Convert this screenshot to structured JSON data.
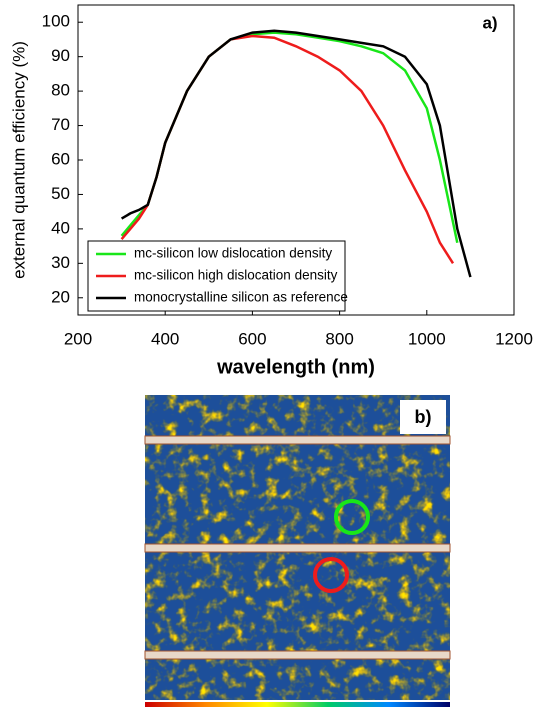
{
  "chart_data": {
    "type": "line",
    "annotation": "a)",
    "x_label": "wavelength  (nm)",
    "y_label": "external quantum efficiency (%)",
    "xlim": [
      200,
      1200
    ],
    "xticks": [
      200,
      400,
      600,
      800,
      1000,
      1200
    ],
    "ylim": [
      15,
      105
    ],
    "yticks": [
      20,
      30,
      40,
      50,
      60,
      70,
      80,
      90,
      100
    ],
    "legend": "lower left",
    "series": [
      {
        "name": "mc-silicon low dislocation density",
        "color": "#19e619",
        "x": [
          300,
          320,
          340,
          360,
          380,
          400,
          450,
          500,
          550,
          600,
          650,
          700,
          750,
          800,
          850,
          900,
          950,
          1000,
          1030,
          1050,
          1070
        ],
        "values": [
          38,
          41,
          44,
          47,
          55,
          65,
          80,
          90,
          95,
          96.5,
          97,
          96.5,
          95.5,
          94.5,
          93,
          91,
          86,
          75,
          60,
          48,
          36
        ]
      },
      {
        "name": "mc-silicon high dislocation density",
        "color": "#ee1c1c",
        "x": [
          300,
          320,
          340,
          360,
          380,
          400,
          450,
          500,
          550,
          600,
          650,
          700,
          750,
          800,
          850,
          900,
          950,
          1000,
          1030,
          1060
        ],
        "values": [
          37,
          40,
          43,
          47,
          55,
          65,
          80,
          90,
          95,
          96,
          95.5,
          93,
          90,
          86,
          80,
          70,
          57,
          45,
          36,
          30
        ]
      },
      {
        "name": "monocrystalline silicon as reference",
        "color": "#000000",
        "x": [
          300,
          320,
          340,
          360,
          380,
          400,
          450,
          500,
          550,
          600,
          650,
          700,
          750,
          800,
          850,
          900,
          950,
          1000,
          1030,
          1050,
          1070,
          1100
        ],
        "values": [
          43,
          44.5,
          45.5,
          47,
          55,
          65,
          80,
          90,
          95,
          97,
          97.5,
          97,
          96,
          95,
          94,
          93,
          90,
          82,
          70,
          55,
          40,
          26
        ]
      }
    ]
  },
  "image_b": {
    "label": "b)"
  }
}
